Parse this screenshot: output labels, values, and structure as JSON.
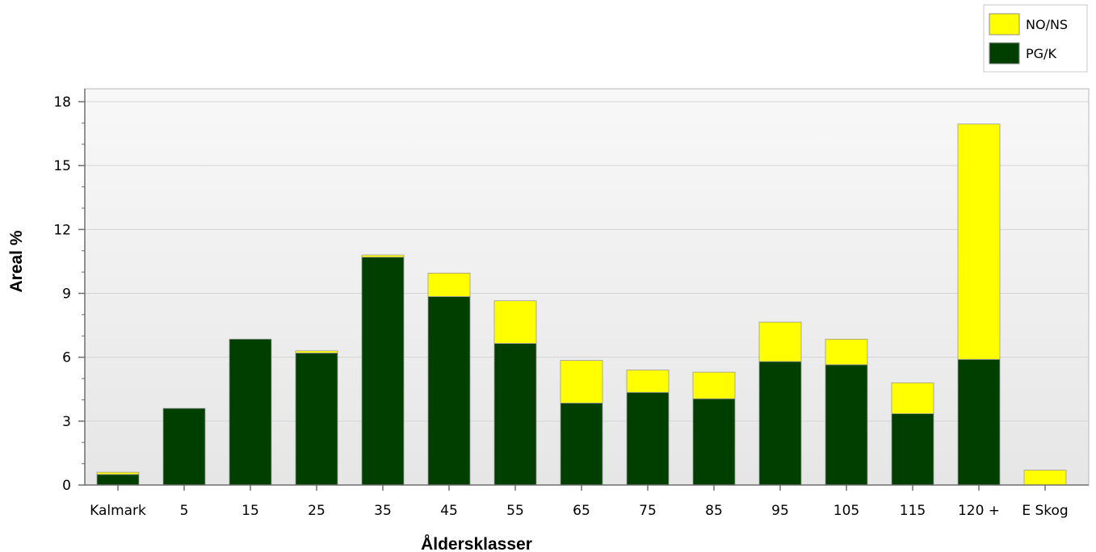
{
  "chart_data": {
    "type": "bar",
    "stacked": true,
    "categories": [
      "Kalmark",
      "5",
      "15",
      "25",
      "35",
      "45",
      "55",
      "65",
      "75",
      "85",
      "95",
      "105",
      "115",
      "120 +",
      "E Skog"
    ],
    "series": [
      {
        "name": "PG/K",
        "color": "#003f00",
        "values": [
          0.5,
          3.6,
          6.85,
          6.2,
          10.7,
          8.85,
          6.65,
          3.85,
          4.35,
          4.05,
          5.8,
          5.65,
          3.35,
          5.9,
          0
        ]
      },
      {
        "name": "NO/NS",
        "color": "#ffff00",
        "values": [
          0.1,
          0,
          0,
          0.1,
          0.1,
          1.1,
          2.0,
          2.0,
          1.05,
          1.25,
          1.85,
          1.2,
          1.45,
          11.05,
          0.7
        ]
      }
    ],
    "xlabel": "Åldersklasser",
    "ylabel": "Areal %",
    "ylim": [
      0,
      18
    ],
    "yticks": [
      "0",
      "3",
      "6",
      "9",
      "12",
      "15",
      "18"
    ],
    "grid": true,
    "legend_position": "top-right",
    "legend": [
      "NO/NS",
      "PG/K"
    ]
  }
}
